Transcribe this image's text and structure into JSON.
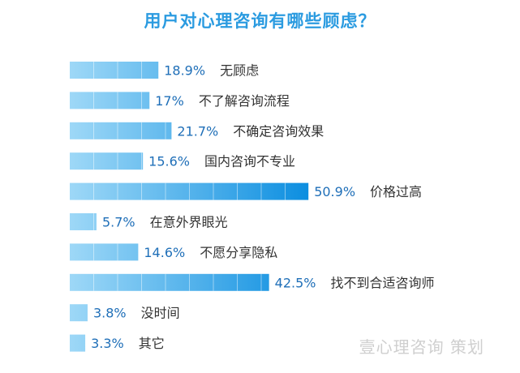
{
  "chart_data": {
    "type": "bar",
    "orientation": "horizontal",
    "title": "用户对心理咨询有哪些顾虑？",
    "categories": [
      "无顾虑",
      "不了解咨询流程",
      "不确定咨询效果",
      "国内咨询不专业",
      "价格过高",
      "在意外界眼光",
      "不愿分享隐私",
      "找不到合适咨询师",
      "没时间",
      "其它"
    ],
    "values": [
      18.9,
      17,
      21.7,
      15.6,
      50.9,
      5.7,
      14.6,
      42.5,
      3.8,
      3.3
    ],
    "value_labels": [
      "18.9%",
      "17%",
      "21.7%",
      "15.6%",
      "50.9%",
      "5.7%",
      "14.6%",
      "42.5%",
      "3.8%",
      "3.3%"
    ],
    "xlabel": "",
    "ylabel": "",
    "xlim": [
      0,
      100
    ],
    "grid": false,
    "legend": "none",
    "colors": {
      "bar_light": "#9ed8f7",
      "bar_dark": "#0c8ee0",
      "value_text": "#1f6fb8",
      "category_text": "#333333",
      "title": "#2b9be0"
    }
  },
  "watermark": "壹心理咨询  策划"
}
